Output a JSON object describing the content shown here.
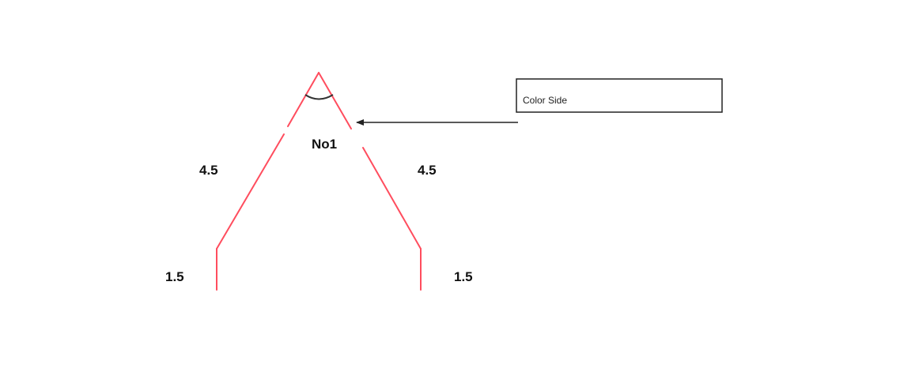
{
  "diagram": {
    "shape_label": "No1",
    "left_upper_length": "4.5",
    "right_upper_length": "4.5",
    "left_lower_length": "1.5",
    "right_lower_length": "1.5",
    "callout_text": "Color Side"
  },
  "colors": {
    "profile_line": "#ff4d5e",
    "annotation_line": "#222222",
    "angle_arc": "#333333",
    "text": "#111111"
  }
}
